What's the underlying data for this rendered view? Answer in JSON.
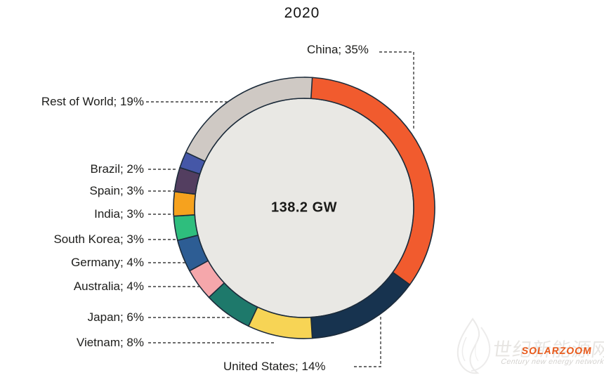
{
  "chart_data": {
    "type": "pie",
    "subtype": "donut",
    "title": "2020",
    "center_label": "138.2 GW",
    "start_angle_deg": 0,
    "direction": "clockwise",
    "inner_color": "#E9E8E4",
    "outline_color": "#1C2B3A",
    "slices": [
      {
        "name": "China",
        "value": 35,
        "label": "China; 35%",
        "color": "#F15B2E"
      },
      {
        "name": "United States",
        "value": 14,
        "label": "United States; 14%",
        "color": "#17334F"
      },
      {
        "name": "Vietnam",
        "value": 8,
        "label": "Vietnam; 8%",
        "color": "#F7D455"
      },
      {
        "name": "Japan",
        "value": 6,
        "label": "Japan; 6%",
        "color": "#1E796B"
      },
      {
        "name": "Australia",
        "value": 4,
        "label": "Australia; 4%",
        "color": "#F5A7AB"
      },
      {
        "name": "Germany",
        "value": 4,
        "label": "Germany; 4%",
        "color": "#2D5D94"
      },
      {
        "name": "South Korea",
        "value": 3,
        "label": "South Korea; 3%",
        "color": "#2EBE7D"
      },
      {
        "name": "India",
        "value": 3,
        "label": "India; 3%",
        "color": "#F6A21E"
      },
      {
        "name": "Spain",
        "value": 3,
        "label": "Spain; 3%",
        "color": "#533E60"
      },
      {
        "name": "Brazil",
        "value": 2,
        "label": "Brazil; 2%",
        "color": "#4557A7"
      },
      {
        "name": "Rest of World",
        "value": 19,
        "label": "Rest of World; 19%",
        "color": "#CFC9C4"
      }
    ]
  },
  "watermark": {
    "logo": "flame-icon",
    "cn_text": "世纪新能源网",
    "brand": "SOLARZOOM",
    "brand_color": "#E8591A",
    "tagline": "Century new energy network"
  }
}
